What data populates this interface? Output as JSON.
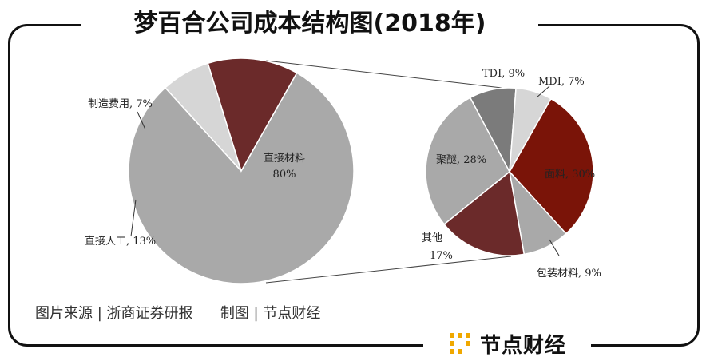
{
  "header": {
    "title": "梦百合公司成本结构图(2018年)"
  },
  "footer": {
    "source_text": "图片来源 | 浙商证券研报      制图 | 节点财经",
    "brand_text": "节点财经"
  },
  "colors": {
    "light_gray": "#a9a9a9",
    "pale_gray": "#d6d6d6",
    "dark_red": "#6b2a2a",
    "deep_red": "#7a1408",
    "dark_gray": "#7b7b7b",
    "brand_gold": "#f0a800"
  },
  "chart_data": [
    {
      "type": "pie",
      "title": "",
      "slices": [
        {
          "label": "直接材料",
          "value_label": "80%",
          "value": 80
        },
        {
          "label": "制造费用",
          "value_label": "7%",
          "value": 7
        },
        {
          "label": "直接人工",
          "value_label": "13%",
          "value": 13
        }
      ]
    },
    {
      "type": "pie",
      "title": "",
      "slices": [
        {
          "label": "TDI",
          "value_label": "9%",
          "value": 9
        },
        {
          "label": "MDI",
          "value_label": "7%",
          "value": 7
        },
        {
          "label": "面料",
          "value_label": "30%",
          "value": 30
        },
        {
          "label": "包装材料",
          "value_label": "9%",
          "value": 9
        },
        {
          "label": "其他",
          "value_label": "17%",
          "value": 17
        },
        {
          "label": "聚醚",
          "value_label": "28%",
          "value": 28
        }
      ]
    }
  ]
}
